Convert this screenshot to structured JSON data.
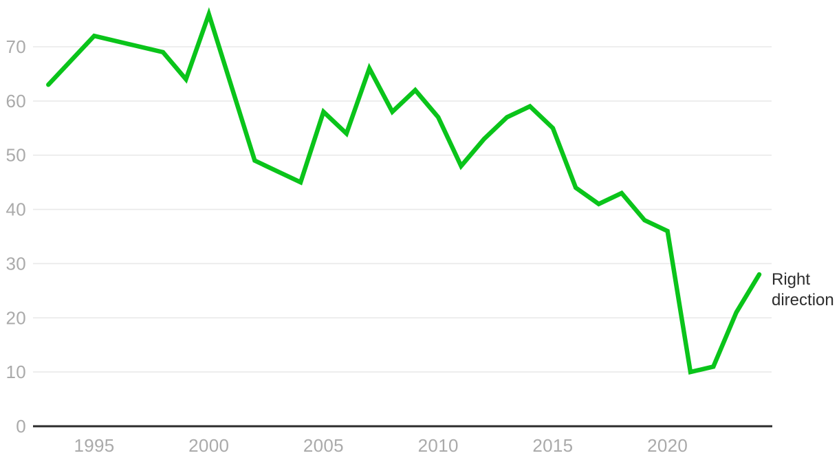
{
  "chart_data": {
    "type": "line",
    "title": "",
    "xlabel": "",
    "ylabel": "",
    "x": [
      1993,
      1995,
      1996,
      1997,
      1998,
      1999,
      2000,
      2002,
      2003,
      2004,
      2005,
      2006,
      2007,
      2008,
      2009,
      2010,
      2011,
      2012,
      2013,
      2014,
      2015,
      2016,
      2017,
      2018,
      2019,
      2020,
      2021,
      2022,
      2023,
      2024
    ],
    "values": [
      63,
      72,
      71,
      70,
      69,
      64,
      76,
      49,
      47,
      45,
      58,
      54,
      66,
      58,
      62,
      57,
      48,
      53,
      57,
      59,
      55,
      44,
      41,
      43,
      38,
      36,
      10,
      11,
      21,
      28
    ],
    "series_label": "Right direction",
    "series_label_lines": [
      "Right",
      "direction"
    ],
    "x_ticks": [
      1995,
      2000,
      2005,
      2010,
      2015,
      2020
    ],
    "y_ticks": [
      0,
      10,
      20,
      30,
      40,
      50,
      60,
      70
    ],
    "xlim": [
      1993,
      2024
    ],
    "ylim": [
      0,
      78
    ],
    "grid": "horizontal",
    "legend_position": "right-of-line-end"
  },
  "colors": {
    "line_green": "#0ac41a",
    "tick_gray": "#aaaaaa",
    "grid_gray": "#e9e9e9",
    "axis_dark": "#2b2b2b",
    "label_dark": "#2d2d2d",
    "background": "#ffffff"
  }
}
